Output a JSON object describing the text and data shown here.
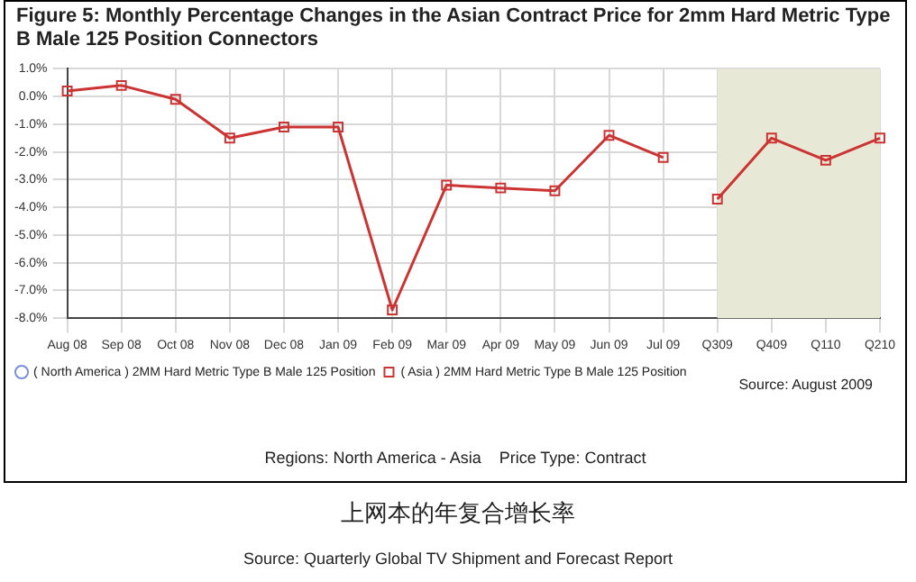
{
  "chart_data": {
    "type": "line",
    "title": "Figure 5: Monthly Percentage Changes in the Asian Contract Price for 2mm Hard Metric Type B Male 125 Position Connectors",
    "categories": [
      "Aug 08",
      "Sep 08",
      "Oct 08",
      "Nov 08",
      "Dec 08",
      "Jan 09",
      "Feb 09",
      "Mar 09",
      "Apr 09",
      "May 09",
      "Jun 09",
      "Jul 09",
      "Q309",
      "Q409",
      "Q110",
      "Q210"
    ],
    "series": [
      {
        "name": "( North America ) 2MM Hard Metric Type B Male 125 Position",
        "color": "#7b8fd6",
        "marker": "circle",
        "values": [
          null,
          null,
          null,
          null,
          null,
          null,
          null,
          null,
          null,
          null,
          null,
          null,
          null,
          null,
          null,
          null
        ]
      },
      {
        "name": "( Asia ) 2MM Hard Metric Type B Male 125 Position",
        "color": "#cc3333",
        "marker": "square",
        "values": [
          0.2,
          0.4,
          -0.1,
          -1.5,
          -1.1,
          -1.1,
          -7.7,
          -3.2,
          -3.3,
          -3.4,
          -1.4,
          -2.2,
          null,
          null,
          null,
          null
        ]
      },
      {
        "color": "#cc3333",
        "marker": "square",
        "values": [
          null,
          null,
          null,
          null,
          null,
          null,
          null,
          null,
          null,
          null,
          null,
          null,
          -3.7,
          -1.5,
          -2.3,
          -1.5
        ]
      }
    ],
    "ylim": [
      -8,
      1
    ],
    "yticks": [
      {
        "value": -8,
        "label": "-8.0%"
      },
      {
        "value": -7,
        "label": "-7.0%"
      },
      {
        "value": -6,
        "label": "-6.0%"
      },
      {
        "value": -5,
        "label": "-5.0%"
      },
      {
        "value": -4,
        "label": "-4.0%"
      },
      {
        "value": -3,
        "label": "-3.0%"
      },
      {
        "value": -2,
        "label": "-2.0%"
      },
      {
        "value": -1,
        "label": "-1.0%"
      },
      {
        "value": 0,
        "label": "0.0%"
      },
      {
        "value": 1,
        "label": "1.0%"
      }
    ],
    "bands": [
      {
        "axis": "x",
        "from": "Q309",
        "to": "Q210",
        "color": "#e8e8d6"
      }
    ],
    "grid": true,
    "legend": "bottom left",
    "annotations": [
      "Source: August 2009",
      "Regions: North America - Asia    Price Type: Contract",
      "上网本的年复合增长率",
      "Source: Quarterly Global TV Shipment and Forecast Report"
    ]
  }
}
